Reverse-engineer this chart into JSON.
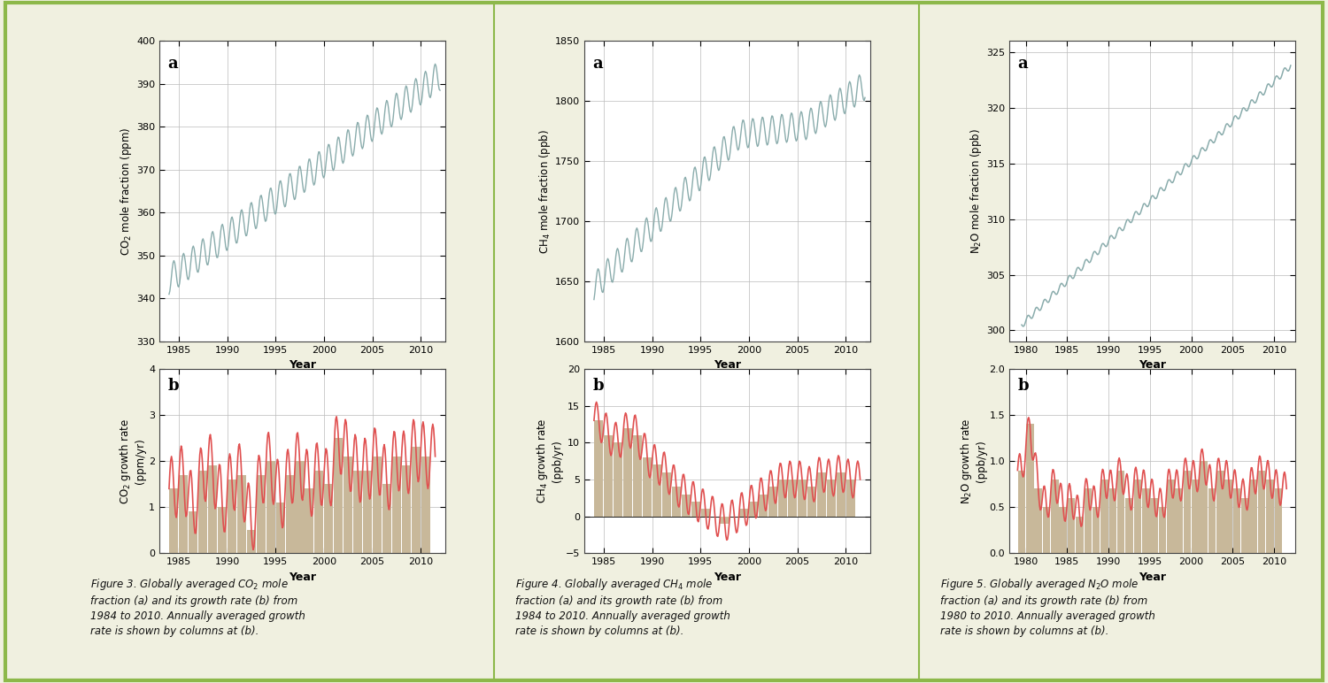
{
  "background_color": "#f0f0e0",
  "border_color": "#8db84a",
  "panel_bg": "#ffffff",
  "co2_a": {
    "ylabel": "CO$_2$ mole fraction (ppm)",
    "xlabel": "Year",
    "xlim": [
      1983,
      2012.5
    ],
    "ylim": [
      330,
      400
    ],
    "yticks": [
      330,
      340,
      350,
      360,
      370,
      380,
      390,
      400
    ],
    "xticks": [
      1985,
      1990,
      1995,
      2000,
      2005,
      2010
    ],
    "label": "a",
    "line_color": "#8aacac"
  },
  "co2_b": {
    "ylabel": "CO$_2$ growth rate\n(ppm/yr)",
    "xlabel": "Year",
    "xlim": [
      1983,
      2012.5
    ],
    "ylim": [
      0,
      4
    ],
    "yticks": [
      0,
      1,
      2,
      3,
      4
    ],
    "xticks": [
      1985,
      1990,
      1995,
      2000,
      2005,
      2010
    ],
    "label": "b",
    "bar_color": "#c8b89a",
    "line_color": "#e05050"
  },
  "ch4_a": {
    "ylabel": "CH$_4$ mole fraction (ppb)",
    "xlabel": "Year",
    "xlim": [
      1983,
      2012.5
    ],
    "ylim": [
      1600,
      1850
    ],
    "yticks": [
      1600,
      1650,
      1700,
      1750,
      1800,
      1850
    ],
    "xticks": [
      1985,
      1990,
      1995,
      2000,
      2005,
      2010
    ],
    "label": "a",
    "line_color": "#8aacac"
  },
  "ch4_b": {
    "ylabel": "CH$_4$ growth rate\n(ppb/yr)",
    "xlabel": "Year",
    "xlim": [
      1983,
      2012.5
    ],
    "ylim": [
      -5,
      20
    ],
    "yticks": [
      -5,
      0,
      5,
      10,
      15,
      20
    ],
    "xticks": [
      1985,
      1990,
      1995,
      2000,
      2005,
      2010
    ],
    "label": "b",
    "bar_color": "#c8b89a",
    "line_color": "#e05050"
  },
  "n2o_a": {
    "ylabel": "N$_2$O mole fraction (ppb)",
    "xlabel": "Year",
    "xlim": [
      1978,
      2012.5
    ],
    "ylim": [
      299,
      326
    ],
    "yticks": [
      300,
      305,
      310,
      315,
      320,
      325
    ],
    "xticks": [
      1980,
      1985,
      1990,
      1995,
      2000,
      2005,
      2010
    ],
    "label": "a",
    "line_color": "#8aacac"
  },
  "n2o_b": {
    "ylabel": "N$_2$O growth rate\n(ppb/yr)",
    "xlabel": "Year",
    "xlim": [
      1978,
      2012.5
    ],
    "ylim": [
      0,
      2
    ],
    "yticks": [
      0,
      0.5,
      1.0,
      1.5,
      2.0
    ],
    "xticks": [
      1980,
      1985,
      1990,
      1995,
      2000,
      2005,
      2010
    ],
    "label": "b",
    "bar_color": "#c8b89a",
    "line_color": "#e05050"
  },
  "captions": [
    "Figure 3. Globally averaged CO$_2$ mole\nfraction (a) and its growth rate (b) from\n1984 to 2010. Annually averaged growth\nrate is shown by columns at (b).",
    "Figure 4. Globally averaged CH$_4$ mole\nfraction (a) and its growth rate (b) from\n1984 to 2010. Annually averaged growth\nrate is shown by columns at (b).",
    "Figure 5. Globally averaged N$_2$O mole\nfraction (a) and its growth rate (b) from\n1980 to 2010. Annually averaged growth\nrate is shown by columns at (b)."
  ]
}
